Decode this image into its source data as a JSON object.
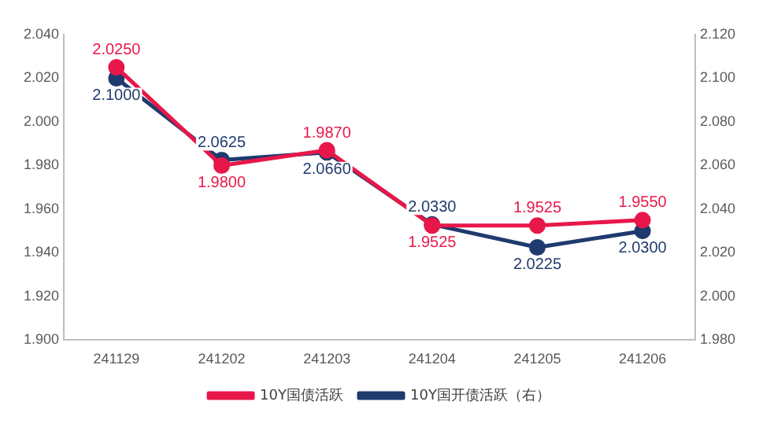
{
  "chart_data": {
    "type": "line",
    "categories": [
      "241129",
      "241202",
      "241203",
      "241204",
      "241205",
      "241206"
    ],
    "series": [
      {
        "name": "10Y国债活跃",
        "color": "#e8174a",
        "values": [
          2.025,
          1.98,
          1.987,
          1.9525,
          1.9525,
          1.955
        ],
        "value_labels": [
          "2.0250",
          "1.9800",
          "1.9870",
          "1.9525",
          "1.9525",
          "1.9550"
        ]
      },
      {
        "name": "10Y国开债活跃（右）",
        "color": "#1f3a6e",
        "axis": "y2",
        "values": [
          2.1,
          2.0625,
          2.066,
          2.033,
          2.0225,
          2.03
        ],
        "value_labels": [
          "2.1000",
          "2.0625",
          "2.0660",
          "2.0330",
          "2.0225",
          "2.0300"
        ]
      }
    ],
    "ylim": [
      1.9,
      2.04
    ],
    "yticks": [
      {
        "value": 1.9,
        "label": "1.900"
      },
      {
        "value": 1.92,
        "label": "1.920"
      },
      {
        "value": 1.94,
        "label": "1.940"
      },
      {
        "value": 1.96,
        "label": "1.960"
      },
      {
        "value": 1.98,
        "label": "1.980"
      },
      {
        "value": 2.0,
        "label": "2.000"
      },
      {
        "value": 2.02,
        "label": "2.020"
      },
      {
        "value": 2.04,
        "label": "2.040"
      }
    ],
    "y2lim": [
      1.98,
      2.12
    ],
    "y2ticks": [
      {
        "value": 1.98,
        "label": "1.980"
      },
      {
        "value": 2.0,
        "label": "2.000"
      },
      {
        "value": 2.02,
        "label": "2.020"
      },
      {
        "value": 2.04,
        "label": "2.040"
      },
      {
        "value": 2.06,
        "label": "2.060"
      },
      {
        "value": 2.08,
        "label": "2.080"
      },
      {
        "value": 2.1,
        "label": "2.100"
      },
      {
        "value": 2.12,
        "label": "2.120"
      }
    ],
    "grid": false,
    "legend": "bottom",
    "marker": "circle",
    "line_style": "solid"
  }
}
